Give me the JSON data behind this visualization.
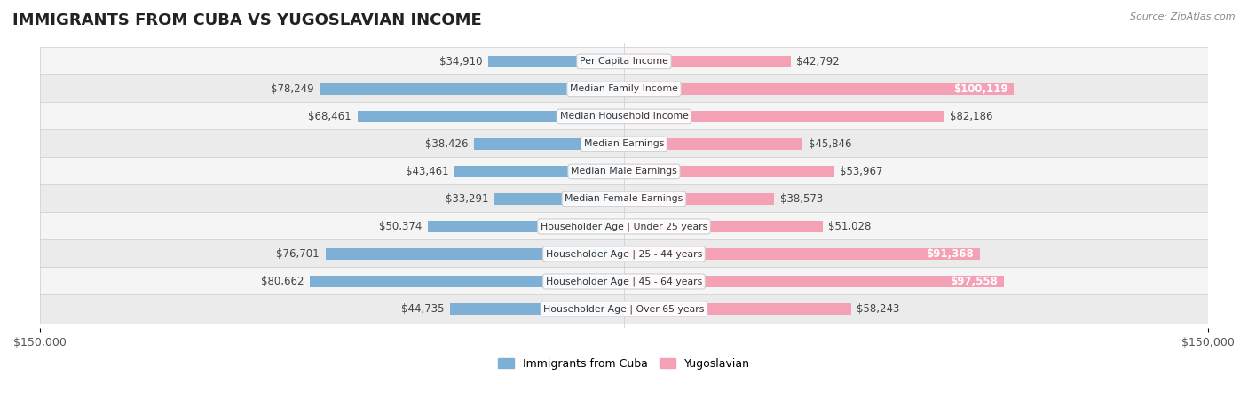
{
  "title": "IMMIGRANTS FROM CUBA VS YUGOSLAVIAN INCOME",
  "source": "Source: ZipAtlas.com",
  "categories": [
    "Per Capita Income",
    "Median Family Income",
    "Median Household Income",
    "Median Earnings",
    "Median Male Earnings",
    "Median Female Earnings",
    "Householder Age | Under 25 years",
    "Householder Age | 25 - 44 years",
    "Householder Age | 45 - 64 years",
    "Householder Age | Over 65 years"
  ],
  "cuba_values": [
    34910,
    78249,
    68461,
    38426,
    43461,
    33291,
    50374,
    76701,
    80662,
    44735
  ],
  "yugo_values": [
    42792,
    100119,
    82186,
    45846,
    53967,
    38573,
    51028,
    91368,
    97558,
    58243
  ],
  "cuba_labels": [
    "$34,910",
    "$78,249",
    "$68,461",
    "$38,426",
    "$43,461",
    "$33,291",
    "$50,374",
    "$76,701",
    "$80,662",
    "$44,735"
  ],
  "yugo_labels": [
    "$42,792",
    "$100,119",
    "$82,186",
    "$45,846",
    "$53,967",
    "$38,573",
    "$51,028",
    "$91,368",
    "$97,558",
    "$58,243"
  ],
  "cuba_color": "#7EB0D5",
  "yugo_color": "#F4A0B5",
  "cuba_color_dark": "#5B9EC9",
  "yugo_color_dark": "#F07090",
  "max_value": 150000,
  "legend_cuba": "Immigrants from Cuba",
  "legend_yugo": "Yugoslavian",
  "bar_height": 0.55,
  "row_bg_color": "#f0f0f0",
  "row_bg_alt": "#e8e8e8",
  "label_fontsize": 8.5,
  "title_fontsize": 13,
  "axis_label_fontsize": 9
}
